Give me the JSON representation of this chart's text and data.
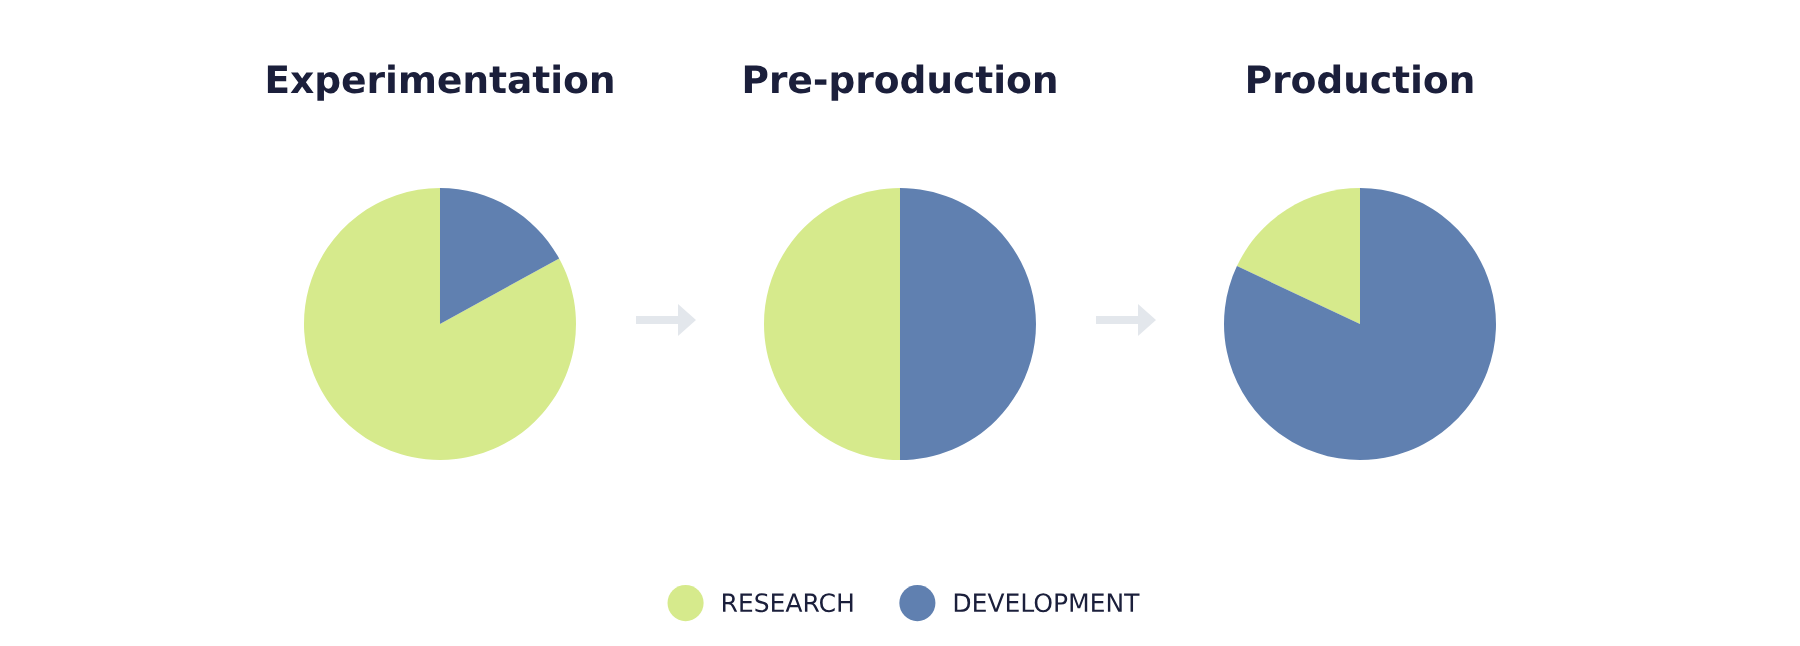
{
  "chart_data": [
    {
      "type": "pie",
      "title": "Experimentation",
      "categories": [
        "RESEARCH",
        "DEVELOPMENT"
      ],
      "values": [
        83,
        17
      ],
      "colors": [
        "#d6ea8c",
        "#6080b0"
      ],
      "legend": "bottom"
    },
    {
      "type": "pie",
      "title": "Pre-production",
      "categories": [
        null,
        null
      ],
      "values": [
        50,
        50
      ],
      "colors": [
        "#d6ea8c",
        "#6080b0"
      ]
    },
    {
      "type": "pie",
      "title": "Production",
      "categories": [
        null,
        null
      ],
      "values": [
        18,
        82
      ],
      "colors": [
        "#d6ea8c",
        "#6080b0"
      ]
    }
  ]
}
